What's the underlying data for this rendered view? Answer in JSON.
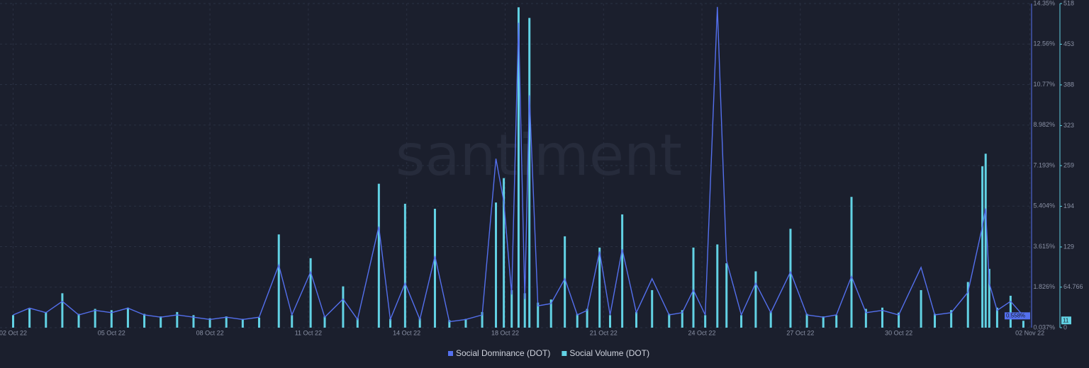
{
  "chart_data": {
    "type": "combo",
    "watermark": "santiment",
    "x": [
      0,
      0.5,
      1,
      1.5,
      2,
      2.5,
      3,
      3.5,
      4,
      4.5,
      5,
      5.5,
      6,
      6.5,
      7,
      7.5,
      8.1,
      8.5,
      9.07,
      9.5,
      10.06,
      10.5,
      11.15,
      11.5,
      11.95,
      12.4,
      12.86,
      13.3,
      13.8,
      14.3,
      14.72,
      14.96,
      15.2,
      15.41,
      15.6,
      15.74,
      16.0,
      16.4,
      16.82,
      17.2,
      17.5,
      17.88,
      18.2,
      18.57,
      19.0,
      19.48,
      20.0,
      20.4,
      20.74,
      21.1,
      21.47,
      21.75,
      22.2,
      22.64,
      23.1,
      23.7,
      24.2,
      24.7,
      25.1,
      25.56,
      26.0,
      26.5,
      27.0,
      27.68,
      28.1,
      28.6,
      29.11,
      29.55,
      29.65,
      29.76,
      30.0,
      30.41,
      30.8
    ],
    "xlim": [
      -0.4,
      31.05
    ],
    "xticks": [
      {
        "value": 0,
        "label": "02 Oct 22"
      },
      {
        "value": 3,
        "label": "05 Oct 22"
      },
      {
        "value": 6,
        "label": "08 Oct 22"
      },
      {
        "value": 9,
        "label": "11 Oct 22"
      },
      {
        "value": 12,
        "label": "14 Oct 22"
      },
      {
        "value": 15,
        "label": "18 Oct 22"
      },
      {
        "value": 18,
        "label": "21 Oct 22"
      },
      {
        "value": 21,
        "label": "24 Oct 22"
      },
      {
        "value": 24,
        "label": "27 Oct 22"
      },
      {
        "value": 27,
        "label": "30 Oct 22"
      },
      {
        "value": 31,
        "label": "02 Nov 22"
      }
    ],
    "ylim": [
      0.037,
      14.35
    ],
    "yticks": [
      {
        "value": 0.037,
        "label": "0.037%"
      },
      {
        "value": 1.826,
        "label": "1.826%"
      },
      {
        "value": 3.615,
        "label": "3.615%"
      },
      {
        "value": 5.404,
        "label": "5.404%"
      },
      {
        "value": 7.193,
        "label": "7.193%"
      },
      {
        "value": 8.982,
        "label": "8.982%"
      },
      {
        "value": 10.77,
        "label": "10.77%"
      },
      {
        "value": 12.56,
        "label": "12.56%"
      },
      {
        "value": 14.35,
        "label": "14.35%"
      }
    ],
    "y2lim": [
      0,
      518
    ],
    "y2ticks": [
      0,
      64.766,
      129,
      194,
      259,
      323,
      388,
      453,
      518
    ],
    "grid": true,
    "legend": "bottom",
    "series": [
      {
        "name": "Social Dominance (DOT)",
        "type": "line",
        "color": "#5470ee",
        "values": [
          0.6,
          0.9,
          0.7,
          1.2,
          0.6,
          0.8,
          0.7,
          0.9,
          0.6,
          0.5,
          0.6,
          0.5,
          0.4,
          0.5,
          0.4,
          0.5,
          2.8,
          0.6,
          2.5,
          0.5,
          1.3,
          0.4,
          4.5,
          0.4,
          2.0,
          0.4,
          3.2,
          0.3,
          0.4,
          0.6,
          7.5,
          5.6,
          1.5,
          13.5,
          1.3,
          10.3,
          1.0,
          1.1,
          2.2,
          0.6,
          0.8,
          3.4,
          0.6,
          3.5,
          0.7,
          2.2,
          0.6,
          0.7,
          1.7,
          0.6,
          14.2,
          3.0,
          0.6,
          2.0,
          0.7,
          2.5,
          0.6,
          0.5,
          0.6,
          2.3,
          0.7,
          0.8,
          0.6,
          2.7,
          0.6,
          0.7,
          1.6,
          4.5,
          5.3,
          2.0,
          0.8,
          1.2,
          0.558
        ],
        "value_labels": [
          null,
          null,
          null,
          null,
          null,
          null,
          null,
          null,
          null,
          null,
          null,
          null,
          null,
          null,
          null,
          null,
          null,
          null,
          null,
          null,
          null,
          null,
          null,
          null,
          null,
          null,
          null,
          null,
          null,
          null,
          null,
          null,
          null,
          null,
          null,
          null,
          null,
          null,
          null,
          null,
          null,
          null,
          null,
          null,
          null,
          null,
          null,
          null,
          null,
          null,
          null,
          null,
          null,
          null,
          null,
          null,
          null,
          null,
          null,
          null,
          null,
          null,
          null,
          null,
          null,
          null,
          null,
          null,
          null,
          null,
          null,
          null,
          "0.558%"
        ]
      },
      {
        "name": "Social Volume (DOT)",
        "type": "bar",
        "axis": "y2",
        "color": "#62d2e4",
        "values": [
          20,
          30,
          25,
          55,
          22,
          30,
          28,
          32,
          22,
          18,
          25,
          20,
          15,
          18,
          14,
          16,
          149,
          20,
          111,
          18,
          66,
          15,
          230,
          14,
          198,
          15,
          190,
          12,
          14,
          25,
          200,
          239,
          60,
          512,
          55,
          495,
          40,
          45,
          146,
          22,
          30,
          128,
          20,
          181,
          25,
          60,
          22,
          28,
          128,
          20,
          133,
          103,
          20,
          90,
          25,
          158,
          22,
          18,
          20,
          209,
          30,
          32,
          24,
          60,
          22,
          28,
          73,
          258,
          278,
          94,
          32,
          51,
          11
        ]
      }
    ]
  }
}
